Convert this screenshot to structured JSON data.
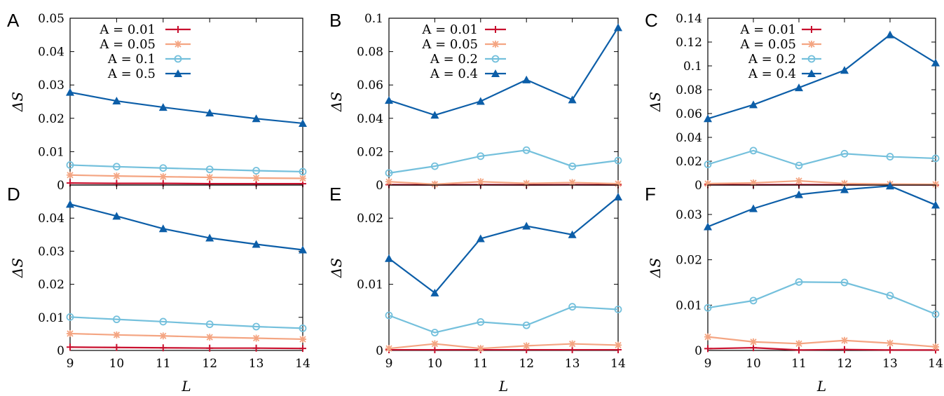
{
  "chart_data": [
    {
      "type": "line",
      "panel_label": "A",
      "x": [
        9,
        10,
        11,
        12,
        13,
        14
      ],
      "ylim": [
        0,
        0.05
      ],
      "yticks": [
        "0",
        "0.01",
        "0.02",
        "0.03",
        "0.04",
        "0.05"
      ],
      "ylabel": "ΔS",
      "xlabel": "",
      "series": [
        {
          "name": "A = 0.01",
          "color": "#c8102e",
          "marker": "plus",
          "values": [
            0.0006,
            0.0005,
            0.0005,
            0.0004,
            0.0004,
            0.0004
          ]
        },
        {
          "name": "A = 0.05",
          "color": "#f4a582",
          "marker": "x",
          "values": [
            0.003,
            0.0027,
            0.0025,
            0.0023,
            0.0021,
            0.002
          ]
        },
        {
          "name": "A = 0.1",
          "color": "#74c0dc",
          "marker": "circle",
          "values": [
            0.006,
            0.0055,
            0.0051,
            0.0047,
            0.0043,
            0.004
          ]
        },
        {
          "name": "A = 0.5",
          "color": "#0c5ea8",
          "marker": "triangle",
          "values": [
            0.0278,
            0.0252,
            0.0233,
            0.0216,
            0.0199,
            0.0185
          ]
        }
      ]
    },
    {
      "type": "line",
      "panel_label": "B",
      "x": [
        9,
        10,
        11,
        12,
        13,
        14
      ],
      "ylim": [
        0,
        0.1
      ],
      "yticks": [
        "0",
        "0.02",
        "0.04",
        "0.06",
        "0.08",
        "0.1"
      ],
      "ylabel": "ΔS",
      "xlabel": "",
      "series": [
        {
          "name": "A = 0.01",
          "color": "#c8102e",
          "marker": "plus",
          "values": [
            0.0002,
            0.0001,
            0.0002,
            0.0001,
            0.0002,
            0.0001
          ]
        },
        {
          "name": "A = 0.05",
          "color": "#f4a582",
          "marker": "x",
          "values": [
            0.002,
            0.0005,
            0.002,
            0.001,
            0.0015,
            0.0008
          ]
        },
        {
          "name": "A = 0.2",
          "color": "#74c0dc",
          "marker": "circle",
          "values": [
            0.0072,
            0.0113,
            0.0173,
            0.0209,
            0.0112,
            0.0147
          ]
        },
        {
          "name": "A = 0.4",
          "color": "#0c5ea8",
          "marker": "triangle",
          "values": [
            0.0508,
            0.0419,
            0.0502,
            0.0631,
            0.0511,
            0.0944
          ]
        }
      ]
    },
    {
      "type": "line",
      "panel_label": "C",
      "x": [
        9,
        10,
        11,
        12,
        13,
        14
      ],
      "ylim": [
        0,
        0.14
      ],
      "yticks": [
        "0",
        "0.02",
        "0.04",
        "0.06",
        "0.08",
        "0.1",
        "0.12",
        "0.14"
      ],
      "ylabel": "ΔS",
      "xlabel": "",
      "series": [
        {
          "name": "A = 0.01",
          "color": "#c8102e",
          "marker": "plus",
          "values": [
            0.0003,
            0.0002,
            0.0003,
            0.0002,
            0.0002,
            0.0001
          ]
        },
        {
          "name": "A = 0.05",
          "color": "#f4a582",
          "marker": "x",
          "values": [
            0.0012,
            0.0018,
            0.0035,
            0.0013,
            0.0008,
            0.0006
          ]
        },
        {
          "name": "A = 0.2",
          "color": "#74c0dc",
          "marker": "circle",
          "values": [
            0.0173,
            0.0289,
            0.0164,
            0.0263,
            0.0238,
            0.0224
          ]
        },
        {
          "name": "A = 0.4",
          "color": "#0c5ea8",
          "marker": "triangle",
          "values": [
            0.0557,
            0.0674,
            0.0817,
            0.0963,
            0.1261,
            0.1026
          ]
        }
      ]
    },
    {
      "type": "line",
      "panel_label": "D",
      "x": [
        9,
        10,
        11,
        12,
        13,
        14
      ],
      "ylim": [
        0,
        0.05
      ],
      "yticks": [
        "0",
        "0.01",
        "0.02",
        "0.03",
        "0.04"
      ],
      "ylabel": "ΔS",
      "xlabel": "L",
      "series": [
        {
          "name": "A = 0.01",
          "color": "#c8102e",
          "marker": "plus",
          "values": [
            0.001,
            0.0009,
            0.0008,
            0.0007,
            0.0007,
            0.0006
          ]
        },
        {
          "name": "A = 0.05",
          "color": "#f4a582",
          "marker": "x",
          "values": [
            0.0051,
            0.0047,
            0.0044,
            0.004,
            0.0037,
            0.0034
          ]
        },
        {
          "name": "A = 0.1",
          "color": "#74c0dc",
          "marker": "circle",
          "values": [
            0.0101,
            0.0094,
            0.0087,
            0.0079,
            0.0072,
            0.0067
          ]
        },
        {
          "name": "A = 0.5",
          "color": "#0c5ea8",
          "marker": "triangle",
          "values": [
            0.0442,
            0.0406,
            0.0368,
            0.034,
            0.0321,
            0.0304
          ]
        }
      ]
    },
    {
      "type": "line",
      "panel_label": "E",
      "x": [
        9,
        10,
        11,
        12,
        13,
        14
      ],
      "ylim": [
        0,
        0.025
      ],
      "yticks": [
        "0",
        "0.01",
        "0.02"
      ],
      "ylabel": "ΔS",
      "xlabel": "L",
      "series": [
        {
          "name": "A = 0.01",
          "color": "#c8102e",
          "marker": "plus",
          "values": [
            0.0001,
            0.0001,
            0.0001,
            0.0001,
            0.0001,
            0.0001
          ]
        },
        {
          "name": "A = 0.05",
          "color": "#f4a582",
          "marker": "x",
          "values": [
            0.0003,
            0.001,
            0.0003,
            0.0007,
            0.001,
            0.0008
          ]
        },
        {
          "name": "A = 0.2",
          "color": "#74c0dc",
          "marker": "circle",
          "values": [
            0.0053,
            0.0027,
            0.0043,
            0.0038,
            0.0066,
            0.0062
          ]
        },
        {
          "name": "A = 0.4",
          "color": "#0c5ea8",
          "marker": "triangle",
          "values": [
            0.0139,
            0.0087,
            0.0169,
            0.0188,
            0.0175,
            0.0232
          ]
        }
      ]
    },
    {
      "type": "line",
      "panel_label": "F",
      "x": [
        9,
        10,
        11,
        12,
        13,
        14
      ],
      "ylim": [
        0,
        0.0365
      ],
      "yticks": [
        "0",
        "0.01",
        "0.02",
        "0.03"
      ],
      "ylabel": "ΔS",
      "xlabel": "L",
      "series": [
        {
          "name": "A = 0.01",
          "color": "#c8102e",
          "marker": "plus",
          "values": [
            0.0004,
            0.0006,
            0.0001,
            0.0002,
            0.0001,
            0.0001
          ]
        },
        {
          "name": "A = 0.05",
          "color": "#f4a582",
          "marker": "x",
          "values": [
            0.003,
            0.0019,
            0.0015,
            0.0022,
            0.0016,
            0.0008
          ]
        },
        {
          "name": "A = 0.2",
          "color": "#74c0dc",
          "marker": "circle",
          "values": [
            0.0094,
            0.011,
            0.0151,
            0.015,
            0.0121,
            0.008
          ]
        },
        {
          "name": "A = 0.4",
          "color": "#0c5ea8",
          "marker": "triangle",
          "values": [
            0.0273,
            0.0313,
            0.0344,
            0.0355,
            0.0363,
            0.0321
          ]
        }
      ]
    }
  ]
}
